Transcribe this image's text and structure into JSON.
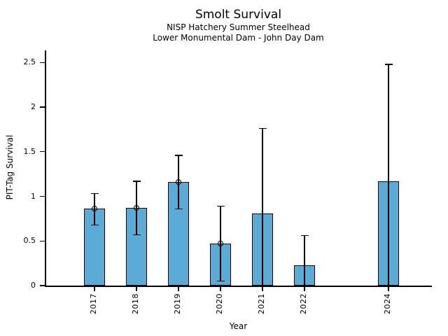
{
  "chart_data": {
    "type": "bar",
    "title": "Smolt Survival",
    "subtitle1": "NISP Hatchery Summer Steelhead",
    "subtitle2": "Lower Monumental Dam - John Day Dam",
    "xlabel": "Year",
    "ylabel": "PIT-Tag Survival",
    "ylim": [
      0,
      2.64
    ],
    "yticks": [
      0,
      0.5,
      1,
      1.5,
      2,
      2.5
    ],
    "ytick_labels": [
      "0",
      "0.5",
      "1",
      "1.5",
      "2",
      "2.5"
    ],
    "x_years_shown": [
      "2017",
      "2018",
      "2019",
      "2020",
      "2021",
      "2022",
      "2024"
    ],
    "grid": false,
    "legend": "none",
    "bar_color": "#5AABD6",
    "bar_edge_color": "#000000",
    "error_bar_color": "#000000",
    "bars": [
      {
        "year": "2017",
        "value": 0.86,
        "ci_low": 0.68,
        "ci_high": 1.03,
        "marker": true
      },
      {
        "year": "2018",
        "value": 0.87,
        "ci_low": 0.57,
        "ci_high": 1.17,
        "marker": true
      },
      {
        "year": "2019",
        "value": 1.16,
        "ci_low": 0.86,
        "ci_high": 1.46,
        "marker": true
      },
      {
        "year": "2020",
        "value": 0.47,
        "ci_low": 0.05,
        "ci_high": 0.89,
        "marker": true
      },
      {
        "year": "2021",
        "value": 0.81,
        "ci_low": 0.0,
        "ci_high": 1.76,
        "marker": false
      },
      {
        "year": "2022",
        "value": 0.23,
        "ci_low": 0.0,
        "ci_high": 0.56,
        "marker": false
      },
      {
        "year": "2024",
        "value": 1.17,
        "ci_low": 0.0,
        "ci_high": 2.48,
        "marker": false
      }
    ]
  }
}
